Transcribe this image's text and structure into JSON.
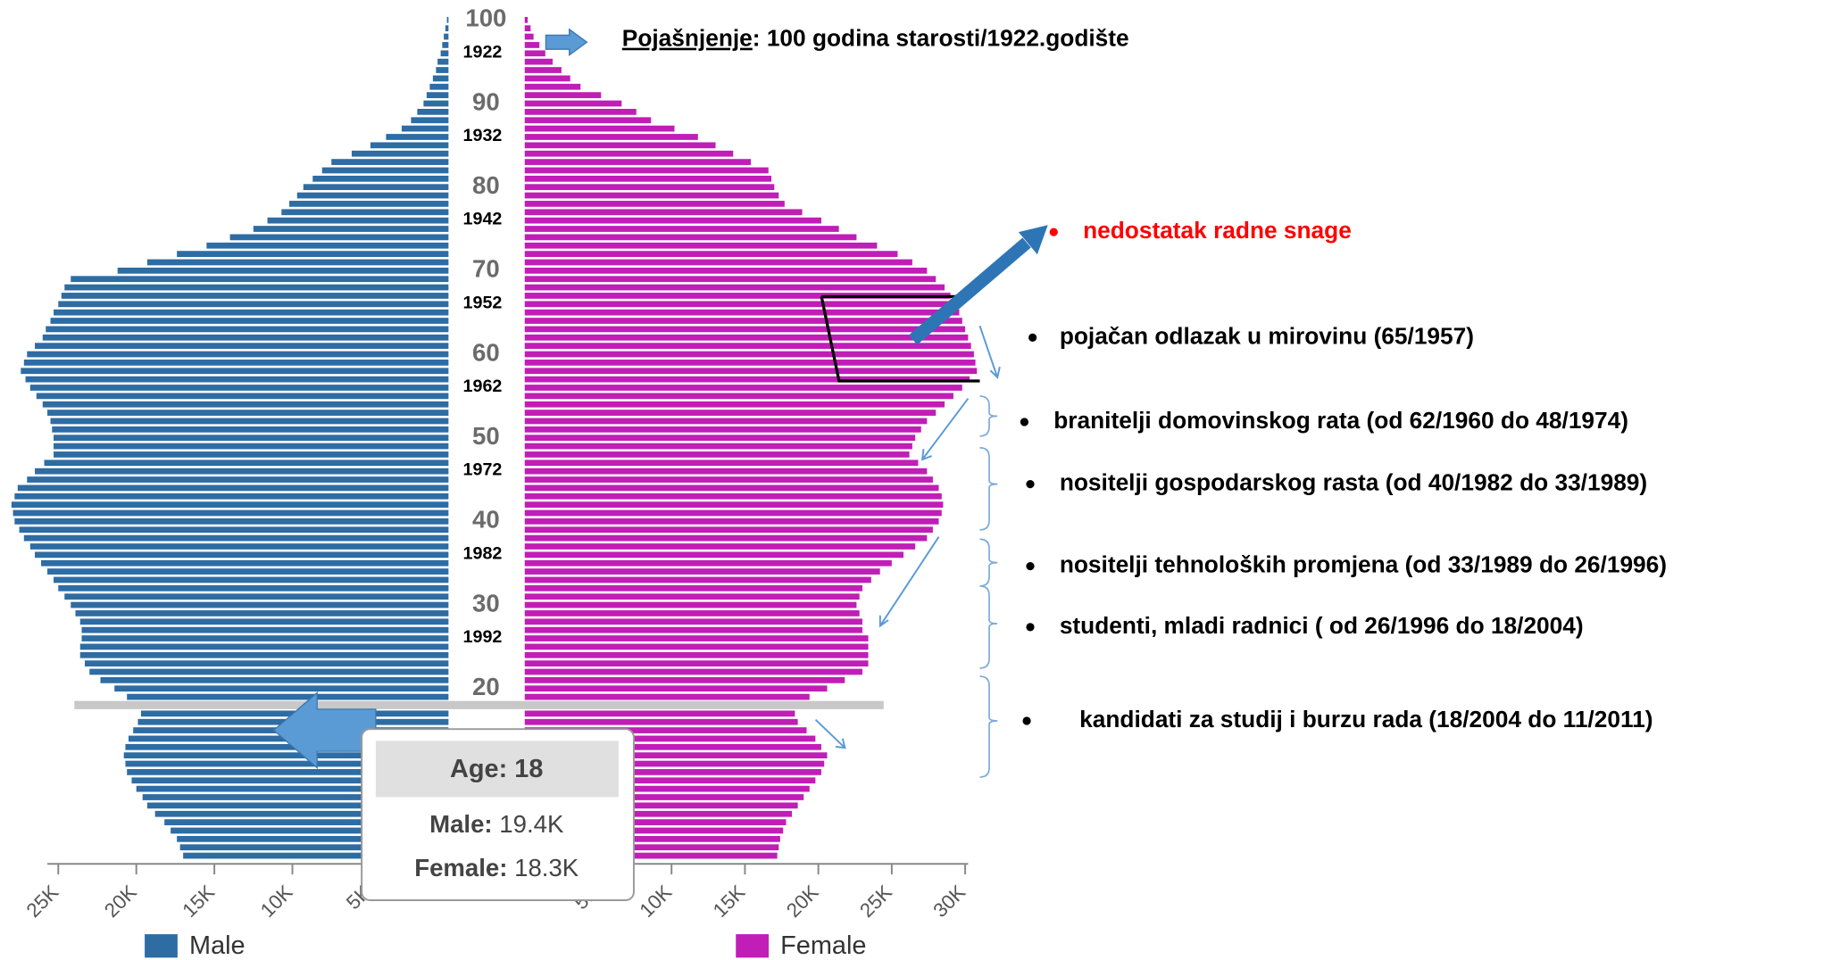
{
  "chart_data": {
    "type": "population_pyramid",
    "ages": [
      0,
      1,
      2,
      3,
      4,
      5,
      6,
      7,
      8,
      9,
      10,
      11,
      12,
      13,
      14,
      15,
      16,
      17,
      18,
      19,
      20,
      21,
      22,
      23,
      24,
      25,
      26,
      27,
      28,
      29,
      30,
      31,
      32,
      33,
      34,
      35,
      36,
      37,
      38,
      39,
      40,
      41,
      42,
      43,
      44,
      45,
      46,
      47,
      48,
      49,
      50,
      51,
      52,
      53,
      54,
      55,
      56,
      57,
      58,
      59,
      60,
      61,
      62,
      63,
      64,
      65,
      66,
      67,
      68,
      69,
      70,
      71,
      72,
      73,
      74,
      75,
      76,
      77,
      78,
      79,
      80,
      81,
      82,
      83,
      84,
      85,
      86,
      87,
      88,
      89,
      90,
      91,
      92,
      93,
      94,
      95,
      96,
      97,
      98,
      99,
      100
    ],
    "ylim": [
      0,
      100
    ],
    "yticks": [
      20,
      30,
      40,
      50,
      60,
      70,
      80,
      90,
      100
    ],
    "birth_year_labels": [
      "1922",
      "1932",
      "1942",
      "1952",
      "1962",
      "1972",
      "1982",
      "1992"
    ],
    "series": [
      {
        "name": "Male",
        "color": "#2e6ca4",
        "side": "left",
        "xlim": [
          0,
          25.7
        ],
        "xticks": [
          {
            "value": 5,
            "label": "5K"
          },
          {
            "value": 10,
            "label": "10K"
          },
          {
            "value": 15,
            "label": "15K"
          },
          {
            "value": 20,
            "label": "20K"
          },
          {
            "value": 25,
            "label": "25K"
          }
        ],
        "values": [
          17.0,
          17.2,
          17.4,
          17.8,
          18.2,
          18.8,
          19.3,
          19.6,
          20.0,
          20.3,
          20.6,
          20.7,
          20.8,
          20.7,
          20.5,
          20.2,
          19.9,
          19.7,
          19.4,
          20.6,
          21.4,
          22.3,
          23.0,
          23.3,
          23.6,
          23.6,
          23.5,
          23.5,
          23.6,
          23.9,
          24.2,
          24.6,
          25.0,
          25.3,
          25.7,
          26.1,
          26.5,
          26.8,
          27.2,
          27.5,
          27.8,
          27.9,
          28.0,
          27.8,
          27.6,
          27.0,
          26.5,
          25.9,
          25.3,
          25.3,
          25.3,
          25.4,
          25.5,
          25.7,
          26.0,
          26.4,
          26.8,
          27.1,
          27.4,
          27.2,
          27.0,
          26.5,
          26.0,
          25.8,
          25.5,
          25.3,
          25.0,
          24.8,
          24.6,
          24.2,
          21.2,
          19.3,
          17.4,
          15.5,
          14.0,
          12.5,
          11.6,
          10.7,
          10.2,
          9.7,
          9.3,
          8.7,
          8.1,
          7.5,
          6.2,
          5.0,
          4.0,
          3.0,
          2.4,
          2.0,
          1.6,
          1.4,
          1.2,
          1.0,
          0.8,
          0.7,
          0.5,
          0.4,
          0.3,
          0.2,
          0.1
        ]
      },
      {
        "name": "Female",
        "color": "#c01eb6",
        "side": "right",
        "xlim": [
          0,
          30.2
        ],
        "xticks": [
          {
            "value": 5,
            "label": "5K"
          },
          {
            "value": 10,
            "label": "10K"
          },
          {
            "value": 15,
            "label": "15K"
          },
          {
            "value": 20,
            "label": "20K"
          },
          {
            "value": 25,
            "label": "25K"
          },
          {
            "value": 30,
            "label": "30K"
          }
        ],
        "values": [
          17.2,
          17.3,
          17.4,
          17.6,
          17.8,
          18.2,
          18.6,
          19.0,
          19.4,
          19.8,
          20.2,
          20.4,
          20.6,
          20.2,
          19.8,
          19.2,
          18.6,
          18.4,
          18.3,
          19.4,
          20.6,
          21.8,
          23.0,
          23.4,
          23.4,
          23.4,
          23.4,
          23.0,
          23.0,
          22.8,
          22.6,
          22.8,
          23.0,
          23.6,
          24.2,
          25.0,
          25.8,
          26.6,
          27.4,
          27.8,
          28.2,
          28.4,
          28.5,
          28.4,
          28.2,
          27.8,
          27.4,
          26.8,
          26.2,
          26.4,
          26.6,
          27.0,
          27.4,
          28.0,
          28.6,
          29.2,
          29.8,
          30.3,
          30.8,
          30.7,
          30.6,
          30.4,
          30.2,
          30.0,
          29.8,
          29.6,
          29.4,
          29.0,
          28.6,
          28.0,
          27.4,
          26.4,
          25.4,
          24.0,
          22.6,
          21.4,
          20.2,
          18.9,
          17.7,
          17.3,
          17.0,
          16.8,
          16.6,
          15.4,
          14.2,
          13.0,
          11.8,
          10.2,
          8.6,
          7.6,
          6.6,
          5.2,
          3.8,
          3.1,
          2.5,
          1.9,
          1.4,
          1.0,
          0.6,
          0.4,
          0.2
        ]
      }
    ],
    "highlight_age": 18,
    "tooltip": {
      "title": "Age: 18",
      "rows": [
        {
          "label": "Male:",
          "value": "19.4K"
        },
        {
          "label": "Female:",
          "value": "18.3K"
        }
      ]
    },
    "explanation": {
      "term": "Pojašnjenje",
      "text": ": 100 godina starosti/1922.godište"
    },
    "notes": [
      {
        "text": "nedostatak radne snage",
        "color": "#ff0000"
      },
      {
        "text": "pojačan odlazak u mirovinu (65/1957)",
        "color": "#000000"
      },
      {
        "text": "branitelji domovinskog rata (od 62/1960 do 48/1974)",
        "color": "#000000"
      },
      {
        "text": "nositelji gospodarskog rasta (od 40/1982 do 33/1989)",
        "color": "#000000"
      },
      {
        "text": "nositelji tehnoloških promjena (od 33/1989 do 26/1996)",
        "color": "#000000"
      },
      {
        "text": "studenti, mladi radnici ( od 26/1996 do 18/2004)",
        "color": "#000000"
      },
      {
        "text": "kandidati za studij i burzu rada (18/2004 do 11/2011)",
        "color": "#000000"
      }
    ]
  }
}
